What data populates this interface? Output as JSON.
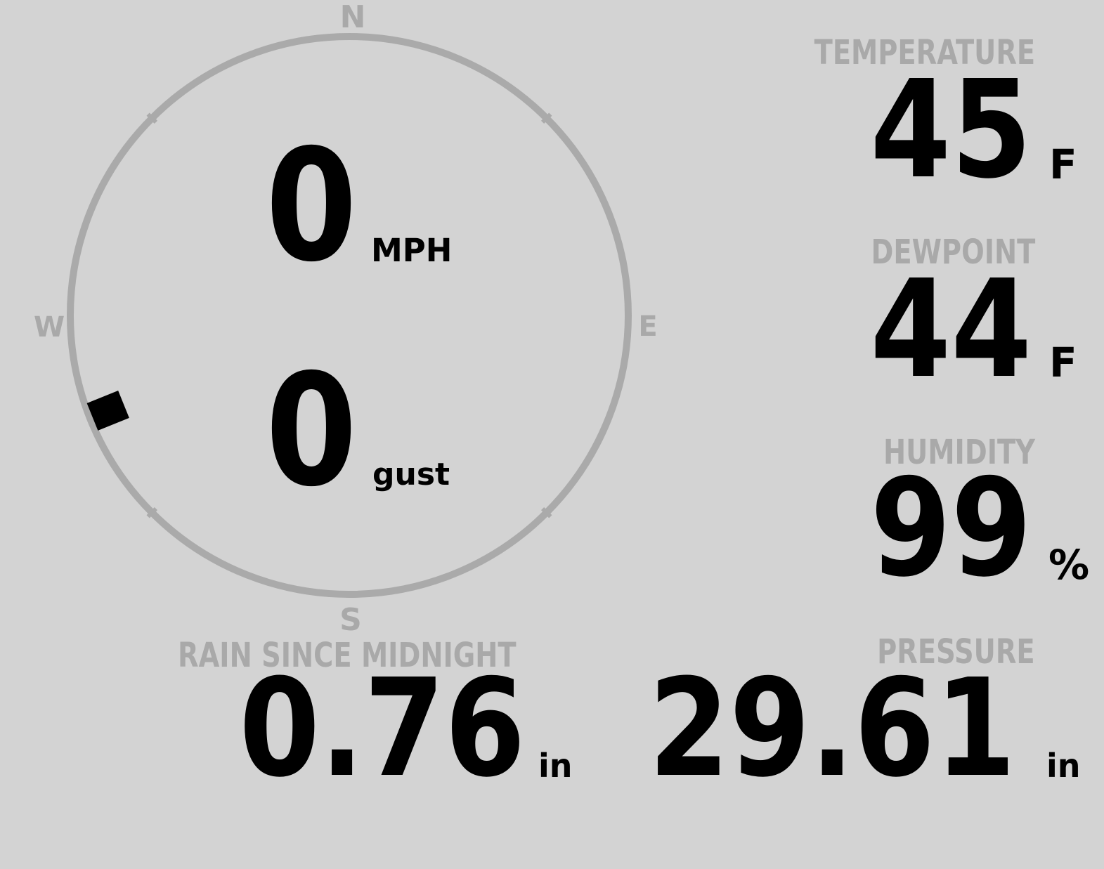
{
  "colors": {
    "background": "#d3d3d3",
    "label": "#a9a9a9",
    "value": "#000000",
    "compass_ring": "#aaaaaa"
  },
  "compass": {
    "north": "N",
    "east": "E",
    "south": "S",
    "west": "W",
    "wind_direction_deg": 248
  },
  "wind": {
    "speed": "0",
    "speed_unit": "MPH",
    "gust": "0",
    "gust_unit": "gust"
  },
  "temperature": {
    "label": "TEMPERATURE",
    "value": "45",
    "unit": "F"
  },
  "dewpoint": {
    "label": "DEWPOINT",
    "value": "44",
    "unit": "F"
  },
  "humidity": {
    "label": "HUMIDITY",
    "value": "99",
    "unit": "%"
  },
  "rain": {
    "label": "RAIN SINCE MIDNIGHT",
    "value": "0.76",
    "unit": "in"
  },
  "pressure": {
    "label": "PRESSURE",
    "value": "29.61",
    "unit": "in"
  }
}
